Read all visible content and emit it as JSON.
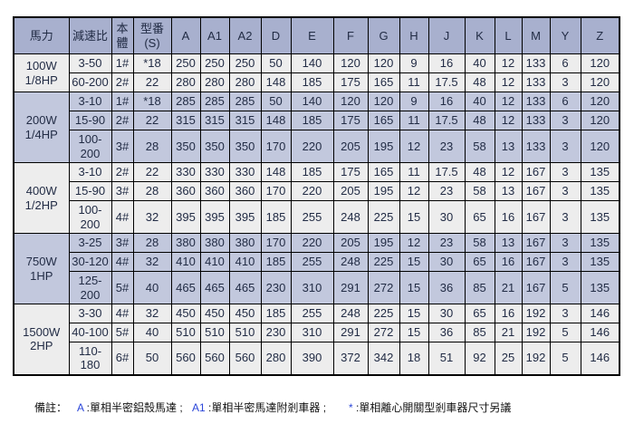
{
  "table": {
    "headers": [
      [
        "馬力"
      ],
      [
        "減速比"
      ],
      [
        "本",
        "體"
      ],
      [
        "型番",
        "(S)"
      ],
      [
        "A"
      ],
      [
        "A1"
      ],
      [
        "A2"
      ],
      [
        "D"
      ],
      [
        "E"
      ],
      [
        "F"
      ],
      [
        "G"
      ],
      [
        "H"
      ],
      [
        "J"
      ],
      [
        "K"
      ],
      [
        "L"
      ],
      [
        "M"
      ],
      [
        "Y"
      ],
      [
        "Z"
      ]
    ],
    "groups": [
      {
        "power": [
          "100W",
          "1/8HP"
        ],
        "rows": [
          {
            "ratio": "3-50",
            "body": "1#",
            "model": "*18",
            "values": [
              250,
              250,
              250,
              50,
              140,
              120,
              120,
              9,
              16,
              40,
              12,
              133,
              6,
              120
            ]
          },
          {
            "ratio": "60-200",
            "body": "2#",
            "model": "22",
            "values": [
              280,
              280,
              280,
              148,
              185,
              175,
              165,
              11,
              17.5,
              48,
              12,
              133,
              3,
              120
            ]
          }
        ]
      },
      {
        "power": [
          "200W",
          "1/4HP"
        ],
        "rows": [
          {
            "ratio": "3-10",
            "body": "1#",
            "model": "*18",
            "values": [
              285,
              285,
              285,
              50,
              140,
              120,
              120,
              9,
              16,
              40,
              12,
              133,
              6,
              120
            ]
          },
          {
            "ratio": "15-90",
            "body": "2#",
            "model": "22",
            "values": [
              315,
              315,
              315,
              148,
              185,
              175,
              165,
              11,
              17.5,
              48,
              12,
              133,
              3,
              120
            ]
          },
          {
            "ratio": "100-200",
            "tall": true,
            "body": "3#",
            "model": "28",
            "values": [
              350,
              350,
              350,
              170,
              220,
              205,
              195,
              12,
              23,
              58,
              13,
              133,
              3,
              120
            ]
          }
        ]
      },
      {
        "power": [
          "400W",
          "1/2HP"
        ],
        "rows": [
          {
            "ratio": "3-10",
            "body": "2#",
            "model": "22",
            "values": [
              330,
              330,
              330,
              148,
              185,
              175,
              165,
              11,
              17.5,
              48,
              12,
              167,
              3,
              135
            ]
          },
          {
            "ratio": "15-90",
            "body": "3#",
            "model": "28",
            "values": [
              360,
              360,
              360,
              170,
              220,
              205,
              195,
              12,
              23,
              58,
              13,
              167,
              3,
              135
            ]
          },
          {
            "ratio": "100-200",
            "tall": true,
            "body": "4#",
            "model": "32",
            "values": [
              395,
              395,
              395,
              185,
              255,
              248,
              225,
              15,
              30,
              65,
              16,
              167,
              3,
              135
            ]
          }
        ]
      },
      {
        "power": [
          "750W",
          "1HP"
        ],
        "rows": [
          {
            "ratio": "3-25",
            "body": "3#",
            "model": "28",
            "values": [
              380,
              380,
              380,
              170,
              220,
              205,
              195,
              12,
              23,
              58,
              13,
              167,
              3,
              135
            ]
          },
          {
            "ratio": "30-120",
            "body": "4#",
            "model": "32",
            "values": [
              410,
              410,
              410,
              185,
              255,
              248,
              225,
              15,
              30,
              65,
              16,
              167,
              3,
              135
            ]
          },
          {
            "ratio": "125-200",
            "tall": true,
            "body": "5#",
            "model": "40",
            "values": [
              465,
              465,
              465,
              230,
              310,
              291,
              272,
              15,
              36,
              85,
              21,
              167,
              5,
              135
            ]
          }
        ]
      },
      {
        "power": [
          "1500W",
          "2HP"
        ],
        "rows": [
          {
            "ratio": "3-30",
            "body": "4#",
            "model": "32",
            "values": [
              450,
              450,
              450,
              185,
              255,
              248,
              225,
              15,
              30,
              65,
              16,
              192,
              3,
              146
            ]
          },
          {
            "ratio": "40-100",
            "body": "5#",
            "model": "40",
            "values": [
              510,
              510,
              510,
              230,
              310,
              291,
              272,
              15,
              36,
              85,
              21,
              192,
              5,
              146
            ]
          },
          {
            "ratio": "110-180",
            "tall": true,
            "body": "6#",
            "model": "50",
            "values": [
              560,
              560,
              560,
              280,
              390,
              372,
              342,
              18,
              51,
              92,
              25,
              192,
              5,
              146
            ]
          }
        ]
      }
    ]
  },
  "note": {
    "label": "備註：",
    "items": [
      {
        "key": "A",
        "text": " :單相半密鋁殼馬達 ;"
      },
      {
        "key": "A1",
        "text": " :單相半密馬達附剎車器 ;"
      },
      {
        "key": "*",
        "text": " :單相離心開關型剎車器尺寸另議"
      }
    ]
  },
  "colors": {
    "header_bg": "#a8b0ce",
    "group_light_bg": "#ededed",
    "group_lavender_bg": "#c2c8dd",
    "table_text": "#222c45",
    "note_key_blue": "#2b46d9",
    "border": "#000000"
  }
}
